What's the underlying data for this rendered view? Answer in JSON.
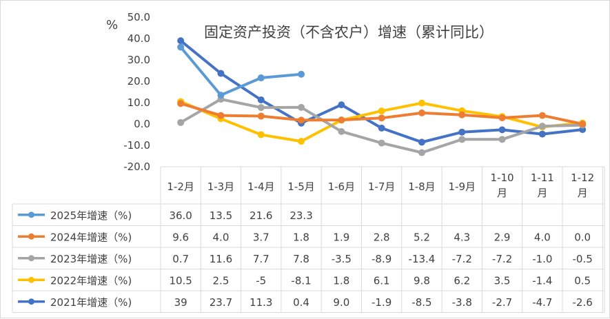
{
  "chart_data": {
    "type": "line",
    "title": "固定资产投资（不含农户）增速（累计同比）",
    "ylabel": "%",
    "ylim": [
      -20,
      50
    ],
    "yticks": [
      "50.0",
      "40.0",
      "30.0",
      "20.0",
      "10.0",
      "0.0",
      "-10.0",
      "-20.0"
    ],
    "grid": false,
    "legend": "data-table-left",
    "categories": [
      [
        "1-2月"
      ],
      [
        "1-3月"
      ],
      [
        "1-4月"
      ],
      [
        "1-5月"
      ],
      [
        "1-6月"
      ],
      [
        "1-7月"
      ],
      [
        "1-8月"
      ],
      [
        "1-9月"
      ],
      [
        "1-10",
        "月"
      ],
      [
        "1-11",
        "月"
      ],
      [
        "1-12",
        "月"
      ]
    ],
    "series": [
      {
        "name": "2025年增速（%)",
        "color": "#5b9bd5",
        "values": [
          36.0,
          13.5,
          21.6,
          23.3,
          null,
          null,
          null,
          null,
          null,
          null,
          null
        ],
        "labels": [
          "36.0",
          "13.5",
          "21.6",
          "23.3",
          "",
          "",
          "",
          "",
          "",
          "",
          ""
        ]
      },
      {
        "name": "2024年增速（%)",
        "color": "#ed7d31",
        "values": [
          9.6,
          4.0,
          3.7,
          1.8,
          1.9,
          2.8,
          5.2,
          4.3,
          2.9,
          4.0,
          0.0
        ],
        "labels": [
          "9.6",
          "4.0",
          "3.7",
          "1.8",
          "1.9",
          "2.8",
          "5.2",
          "4.3",
          "2.9",
          "4.0",
          "0.0"
        ]
      },
      {
        "name": "2023年增速（%)",
        "color": "#a5a5a5",
        "values": [
          0.7,
          11.6,
          7.7,
          7.8,
          -3.5,
          -8.9,
          -13.4,
          -7.2,
          -7.2,
          -1.0,
          -0.5
        ],
        "labels": [
          "0.7",
          "11.6",
          "7.7",
          "7.8",
          "-3.5",
          "-8.9",
          "-13.4",
          "-7.2",
          "-7.2",
          "-1.0",
          "-0.5"
        ]
      },
      {
        "name": "2022年增速（%)",
        "color": "#ffc000",
        "values": [
          10.5,
          2.5,
          -5,
          -8.1,
          1.8,
          6.1,
          9.8,
          6.2,
          3.5,
          -1.4,
          0.5
        ],
        "labels": [
          "10.5",
          "2.5",
          "-5",
          "-8.1",
          "1.8",
          "6.1",
          "9.8",
          "6.2",
          "3.5",
          "-1.4",
          "0.5"
        ]
      },
      {
        "name": "2021年增速（%)",
        "color": "#4472c4",
        "values": [
          39,
          23.7,
          11.3,
          0.4,
          9.0,
          -1.9,
          -8.5,
          -3.8,
          -2.7,
          -4.7,
          -2.6
        ],
        "labels": [
          "39",
          "23.7",
          "11.3",
          "0.4",
          "9.0",
          "-1.9",
          "-8.5",
          "-3.8",
          "-2.7",
          "-4.7",
          "-2.6"
        ]
      }
    ]
  }
}
